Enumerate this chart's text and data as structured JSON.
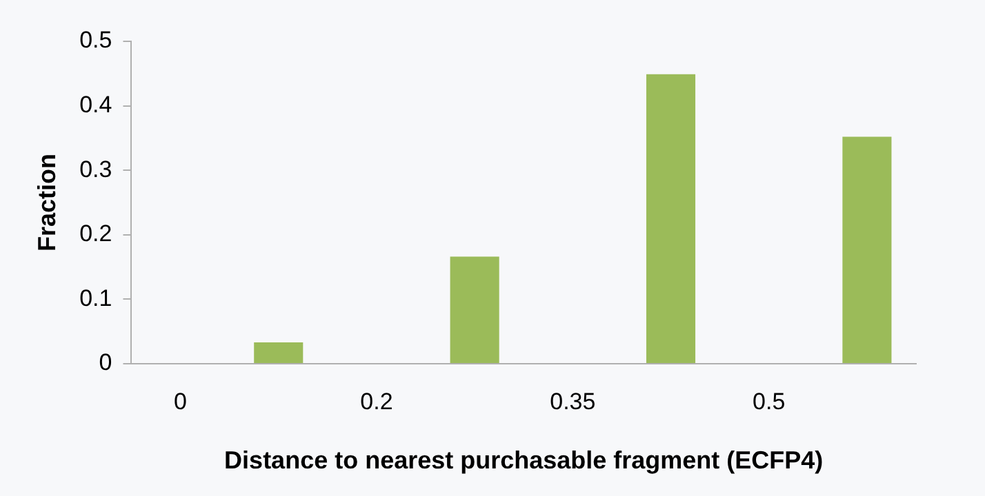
{
  "chart_data": {
    "type": "bar",
    "xlabel": "Distance to nearest purchasable fragment (ECFP4)",
    "ylabel": "Fraction",
    "categories": [
      "0",
      null,
      "0.2",
      null,
      "0.35",
      null,
      "0.5",
      null
    ],
    "values": [
      0,
      0.033,
      0,
      0.166,
      0,
      0.449,
      0,
      0.352
    ],
    "color": "#9bbb59",
    "ylim": [
      0,
      0.5
    ],
    "yticks": [
      0,
      0.1,
      0.2,
      0.3,
      0.4,
      0.5
    ],
    "grid": false,
    "legend": false
  }
}
